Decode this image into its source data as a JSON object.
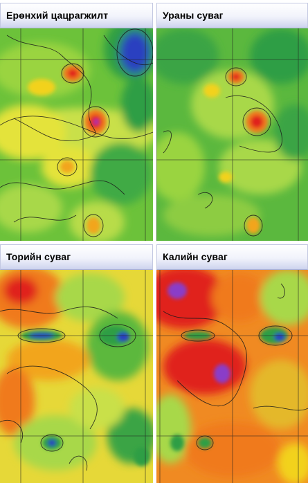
{
  "panels": [
    {
      "title": "Ерөнхий цацрагжилт"
    },
    {
      "title": "Ураны суваг"
    },
    {
      "title": "Торийн суваг"
    },
    {
      "title": "Калийн суваг"
    }
  ],
  "colors": {
    "low": "#2a3fc0",
    "mid_low": "#2f9e44",
    "mid": "#a8d84a",
    "mid_high": "#f2d21d",
    "high": "#f07a1d",
    "very_high": "#e0201a",
    "peak": "#8a3cc8",
    "contour": "#1a1a1a",
    "grid": "#202020",
    "header_gradient_end": "#cdd3ee"
  }
}
